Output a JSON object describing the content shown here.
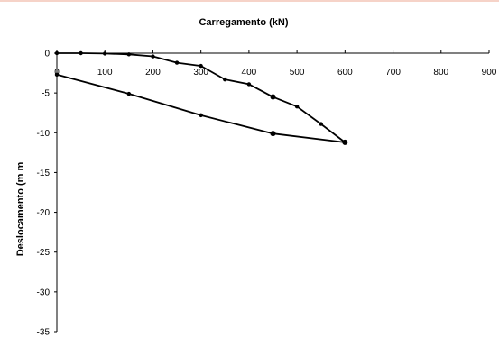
{
  "chart_data": {
    "type": "line",
    "title": "Carregamento (kN)",
    "xlabel": "Carregamento (kN)",
    "ylabel": "Deslocamento (m m",
    "x_ticks": [
      "0",
      "100",
      "200",
      "300",
      "400",
      "500",
      "600",
      "700",
      "800",
      "900"
    ],
    "y_ticks": [
      "0",
      "-5",
      "-10",
      "-15",
      "-20",
      "-25",
      "-30",
      "-35"
    ],
    "xlim": [
      0,
      900
    ],
    "ylim": [
      -35,
      0
    ],
    "x_axis_position": "top",
    "grid": false,
    "legend": "none",
    "line_color": "#000000",
    "series": [
      {
        "x": [
          0,
          50,
          100,
          150,
          200,
          250,
          300,
          350,
          400,
          450,
          500,
          550,
          600,
          450,
          300,
          150,
          0
        ],
        "y": [
          0,
          0,
          -0.05,
          -0.15,
          -0.4,
          -1.2,
          -1.6,
          -3.3,
          -3.9,
          -5.5,
          -6.7,
          -8.9,
          -11.2,
          -10.1,
          -7.8,
          -5.1,
          -2.7
        ],
        "markers": [
          "small",
          "small",
          "small",
          "small",
          "small",
          "small",
          "small",
          "small",
          "small",
          "large",
          "small",
          "small",
          "large",
          "large",
          "small",
          "small",
          "small"
        ]
      }
    ]
  }
}
